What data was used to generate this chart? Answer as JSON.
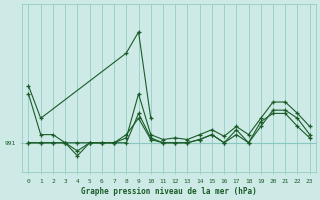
{
  "background_color": "#ceeae6",
  "plot_bg_color": "#ceeae6",
  "grid_color": "#88c8c0",
  "line_color": "#1a5c28",
  "xlabel": "Graphe pression niveau de la mer (hPa)",
  "ylabel_ticks": [
    991
  ],
  "x_ticks": [
    0,
    1,
    2,
    3,
    4,
    5,
    6,
    7,
    8,
    9,
    10,
    11,
    12,
    13,
    14,
    15,
    16,
    17,
    18,
    19,
    20,
    21,
    22,
    23
  ],
  "series": [
    [
      994.5,
      992.5,
      null,
      null,
      null,
      null,
      null,
      null,
      996.5,
      997.8,
      992.5,
      null,
      null,
      null,
      null,
      null,
      null,
      null,
      null,
      null,
      null,
      null,
      null,
      null
    ],
    [
      994.0,
      991.5,
      991.5,
      991.0,
      990.5,
      991.0,
      991.0,
      991.0,
      991.3,
      994.0,
      991.5,
      991.2,
      991.3,
      991.2,
      991.5,
      991.8,
      991.4,
      992.0,
      991.5,
      992.5,
      993.5,
      993.5,
      992.8,
      992.0
    ],
    [
      991.0,
      991.0,
      991.0,
      991.0,
      990.2,
      991.0,
      991.0,
      991.0,
      991.5,
      992.5,
      991.2,
      991.0,
      991.0,
      991.0,
      991.2,
      991.5,
      991.0,
      991.8,
      991.0,
      992.0,
      993.0,
      993.0,
      992.5,
      991.5
    ],
    [
      991.0,
      991.0,
      991.0,
      991.0,
      991.0,
      991.0,
      991.0,
      991.0,
      991.0,
      992.8,
      991.3,
      991.0,
      991.0,
      991.0,
      991.2,
      991.5,
      991.0,
      991.5,
      991.0,
      992.3,
      992.8,
      992.8,
      992.0,
      991.3
    ]
  ],
  "xlim": [
    -0.5,
    23.5
  ],
  "ylim": [
    989.2,
    999.5
  ]
}
